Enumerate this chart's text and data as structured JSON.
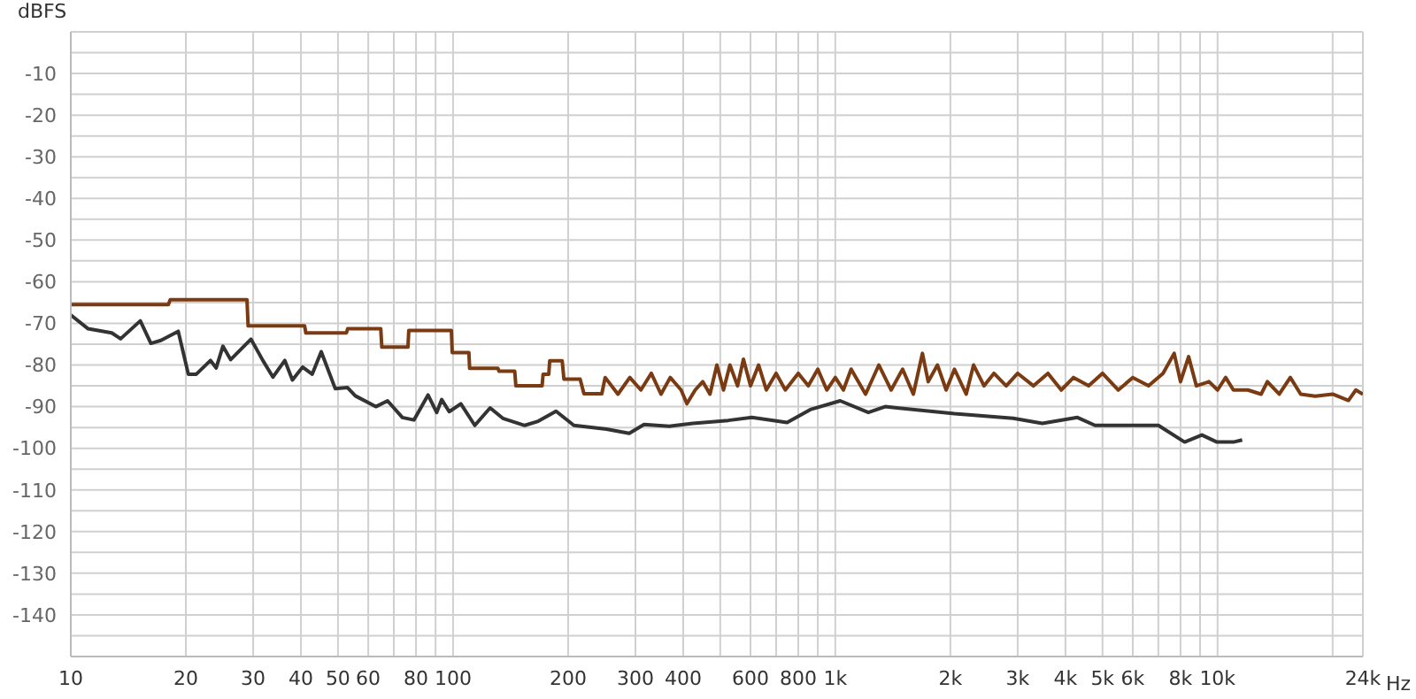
{
  "chart_data": {
    "type": "line",
    "ylabel": "dBFS",
    "log": "x",
    "grid": true,
    "legend": false,
    "marker": "none",
    "line_style": "solid",
    "xlim": [
      10,
      24000
    ],
    "ylim": [
      -150,
      0
    ],
    "xticks": [
      10,
      20,
      30,
      40,
      50,
      60,
      {
        "value": 70,
        "label": null
      },
      80,
      {
        "value": 90,
        "label": null
      },
      100,
      200,
      300,
      400,
      {
        "value": 500,
        "label": null
      },
      600,
      {
        "value": 700,
        "label": null
      },
      800,
      {
        "value": 900,
        "label": null
      },
      {
        "value": 1000,
        "label": "1k"
      },
      {
        "value": 2000,
        "label": "2k"
      },
      {
        "value": 3000,
        "label": "3k"
      },
      {
        "value": 4000,
        "label": "4k"
      },
      {
        "value": 5000,
        "label": "5k"
      },
      {
        "value": 6000,
        "label": "6k"
      },
      {
        "value": 7000,
        "label": null
      },
      {
        "value": 8000,
        "label": "8k"
      },
      {
        "value": 9000,
        "label": null
      },
      {
        "value": 10000,
        "label": "10k"
      },
      {
        "value": 20000,
        "label": null
      },
      {
        "value": 24000,
        "label": "24k"
      }
    ],
    "xlabel": "Hz",
    "yticks": [
      {
        "value": -145,
        "label": null
      },
      -140,
      {
        "value": -135,
        "label": null
      },
      -130,
      {
        "value": -125,
        "label": null
      },
      -120,
      {
        "value": -115,
        "label": null
      },
      -110,
      {
        "value": -105,
        "label": null
      },
      -100,
      {
        "value": -95,
        "label": null
      },
      -90,
      {
        "value": -85,
        "label": null
      },
      -80,
      {
        "value": -75,
        "label": null
      },
      -70,
      {
        "value": -65,
        "label": null
      },
      -60,
      {
        "value": -55,
        "label": null
      },
      -50,
      {
        "value": -45,
        "label": null
      },
      -40,
      {
        "value": -35,
        "label": null
      },
      -30,
      {
        "value": -25,
        "label": null
      },
      -20,
      {
        "value": -15,
        "label": null
      },
      -10,
      {
        "value": -5,
        "label": null
      }
    ],
    "series": [
      {
        "color": "#7a3b12",
        "x": [
          10,
          18,
          18.2,
          28.9,
          29.1,
          40.9,
          41.2,
          52.6,
          53,
          64.7,
          65.1,
          76.2,
          76.6,
          99,
          99.5,
          110,
          110.5,
          131,
          132,
          145,
          146,
          171,
          172,
          178,
          179,
          193,
          195,
          215,
          220,
          245,
          250,
          270,
          290,
          310,
          330,
          350,
          370,
          395,
          409,
          430,
          450,
          470,
          490,
          510,
          530,
          555,
          575,
          600,
          630,
          660,
          700,
          740,
          800,
          850,
          900,
          950,
          1000,
          1050,
          1100,
          1200,
          1300,
          1400,
          1500,
          1600,
          1690,
          1750,
          1850,
          1950,
          2050,
          2200,
          2300,
          2450,
          2600,
          2800,
          3000,
          3300,
          3600,
          3900,
          4200,
          4600,
          5000,
          5500,
          6000,
          6600,
          7200,
          7700,
          8000,
          8400,
          8800,
          9500,
          10000,
          10500,
          11000,
          12000,
          13000,
          13500,
          14500,
          15500,
          16500,
          18000,
          20000,
          22000,
          23000,
          24000
        ],
        "values": [
          -65.5,
          -65.5,
          -64.3,
          -64.3,
          -70.6,
          -70.6,
          -72.3,
          -72.3,
          -71.3,
          -71.3,
          -75.7,
          -75.7,
          -71.7,
          -71.7,
          -77,
          -77,
          -80.8,
          -80.8,
          -81.5,
          -81.5,
          -85,
          -85,
          -82.2,
          -82.2,
          -79,
          -79,
          -83.4,
          -83.4,
          -86.9,
          -86.9,
          -83,
          -87,
          -83,
          -86,
          -82,
          -87,
          -83,
          -86,
          -89.3,
          -86,
          -84,
          -87,
          -80,
          -86,
          -80,
          -85,
          -78.6,
          -85,
          -80,
          -86,
          -82,
          -86,
          -82,
          -85,
          -81,
          -86,
          -83,
          -86,
          -81,
          -87,
          -80,
          -86,
          -81,
          -87,
          -77.2,
          -84,
          -80,
          -86,
          -81,
          -87,
          -80,
          -85,
          -82,
          -85,
          -82,
          -85,
          -82,
          -86,
          -83,
          -85,
          -82,
          -86,
          -83,
          -85,
          -82,
          -77.2,
          -84,
          -78,
          -85,
          -84,
          -86,
          -83,
          -86,
          -86,
          -87,
          -84,
          -87,
          -83,
          -87,
          -87.5,
          -87,
          -88.5,
          -86,
          -87
        ]
      },
      {
        "color": "#333333",
        "x": [
          10,
          11.1,
          12.8,
          13.5,
          15.2,
          16.2,
          17.2,
          19.1,
          20.3,
          21.3,
          23.2,
          24,
          25,
          26.2,
          29.6,
          31.8,
          33.8,
          36.3,
          38,
          40.4,
          42.8,
          45.2,
          49.2,
          52.9,
          55.5,
          62.8,
          67.4,
          73.7,
          79,
          86,
          90.6,
          93.4,
          97.7,
          104.8,
          114,
          125,
          135,
          154,
          167,
          186,
          207,
          252,
          289,
          316,
          368,
          424,
          525,
          605,
          748,
          860,
          1030,
          1220,
          1350,
          2050,
          2920,
          3480,
          4300,
          4780,
          7000,
          8200,
          9100,
          9960,
          11000,
          11600
        ],
        "values": [
          -68,
          -71.3,
          -72.3,
          -73.7,
          -69.4,
          -74.8,
          -74.1,
          -71.9,
          -82.2,
          -82.2,
          -78.9,
          -80.7,
          -75.5,
          -78.7,
          -73.8,
          -78.9,
          -82.9,
          -78.9,
          -83.6,
          -80.5,
          -82.2,
          -76.8,
          -85.7,
          -85.4,
          -87.4,
          -90,
          -88.6,
          -92.6,
          -93.2,
          -87.2,
          -91.4,
          -88.3,
          -91.2,
          -89.3,
          -94.5,
          -90.3,
          -92.8,
          -94.5,
          -93.5,
          -91.1,
          -94.5,
          -95.4,
          -96.4,
          -94.3,
          -94.7,
          -94,
          -93.3,
          -92.6,
          -93.8,
          -90.7,
          -88.6,
          -91.4,
          -90,
          -91.7,
          -92.8,
          -94,
          -92.6,
          -94.5,
          -94.5,
          -98.5,
          -96.8,
          -98.5,
          -98.5,
          -98
        ]
      }
    ]
  }
}
